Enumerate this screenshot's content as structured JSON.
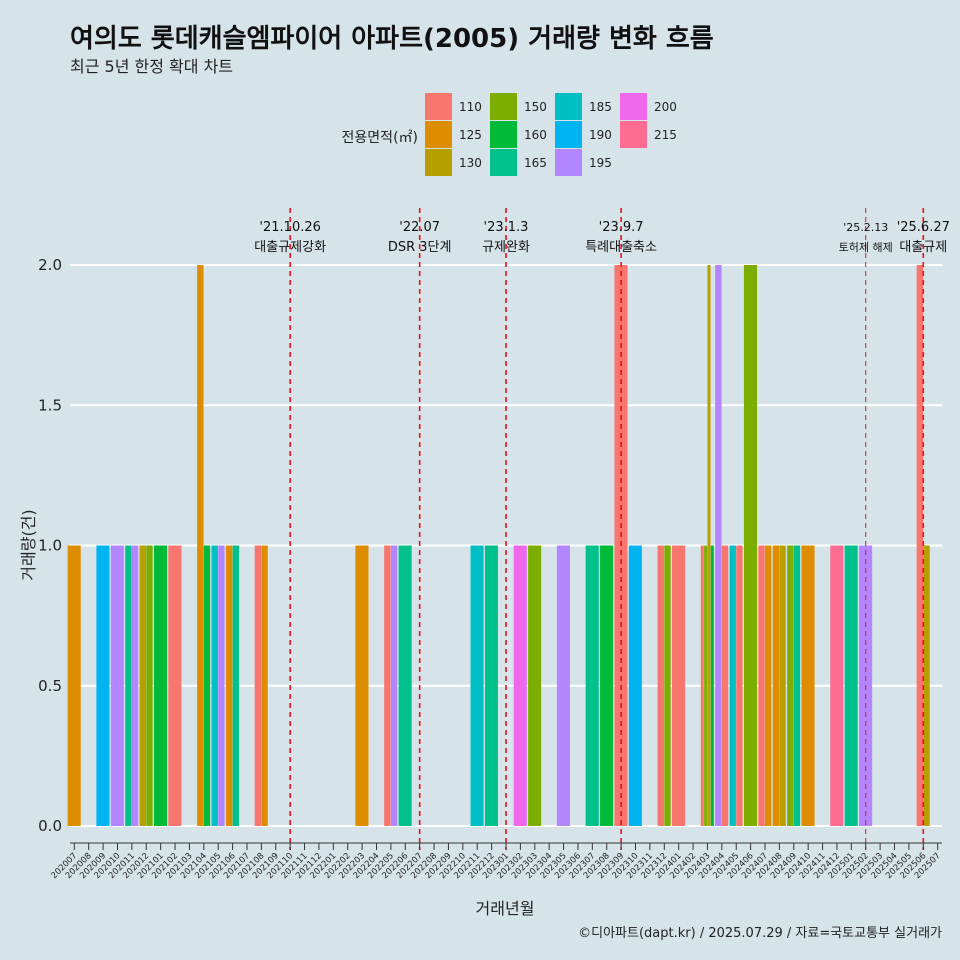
{
  "title": "여의도 롯데캐슬엠파이어 아파트(2005) 거래량 변화 흐름",
  "subtitle": "최근 5년 한정 확대 차트",
  "caption": "©디아파트(dapt.kr) / 2025.07.29 / 자료=국토교통부 실거래가",
  "colors": {
    "110": "#F8766D",
    "125": "#DE8C00",
    "130": "#B79F00",
    "150": "#7CAE00",
    "160": "#00BA38",
    "165": "#00C08B",
    "185": "#00BFC4",
    "190": "#00B4F0",
    "195": "#B385FF",
    "200": "#EF67EB",
    "215": "#FF6C91"
  },
  "chart_data": {
    "type": "bar",
    "xlabel": "거래년월",
    "ylabel": "거래량(건)",
    "ylim": [
      0,
      2
    ],
    "yticks": [
      0.0,
      0.5,
      1.0,
      1.5,
      2.0
    ],
    "ytick_labels": [
      "0.0",
      "0.5",
      "1.0",
      "1.5",
      "2.0"
    ],
    "legend_title": "전용면적(㎡)",
    "legend_position": "top",
    "legend_entries": [
      "110",
      "125",
      "130",
      "150",
      "160",
      "165",
      "185",
      "190",
      "195",
      "200",
      "215"
    ],
    "categories": [
      "202007",
      "202008",
      "202009",
      "202010",
      "202011",
      "202012",
      "202101",
      "202102",
      "202103",
      "202104",
      "202105",
      "202106",
      "202107",
      "202108",
      "202109",
      "202110",
      "202111",
      "202112",
      "202201",
      "202202",
      "202203",
      "202204",
      "202205",
      "202206",
      "202207",
      "202208",
      "202209",
      "202210",
      "202211",
      "202212",
      "202301",
      "202302",
      "202303",
      "202304",
      "202305",
      "202306",
      "202307",
      "202308",
      "202309",
      "202310",
      "202311",
      "202312",
      "202401",
      "202402",
      "202403",
      "202404",
      "202405",
      "202406",
      "202407",
      "202408",
      "202409",
      "202410",
      "202411",
      "202412",
      "202501",
      "202502",
      "202503",
      "202504",
      "202505",
      "202506",
      "202507"
    ],
    "bars": [
      {
        "month": "202007",
        "area": "125",
        "value": 1
      },
      {
        "month": "202009",
        "area": "190",
        "value": 1
      },
      {
        "month": "202010",
        "area": "195",
        "value": 1
      },
      {
        "month": "202011",
        "area": "165",
        "value": 1
      },
      {
        "month": "202011",
        "area": "195",
        "value": 1
      },
      {
        "month": "202012",
        "area": "130",
        "value": 1
      },
      {
        "month": "202012",
        "area": "150",
        "value": 1
      },
      {
        "month": "202101",
        "area": "160",
        "value": 1
      },
      {
        "month": "202102",
        "area": "110",
        "value": 1
      },
      {
        "month": "202104",
        "area": "125",
        "value": 2
      },
      {
        "month": "202104",
        "area": "160",
        "value": 1
      },
      {
        "month": "202105",
        "area": "185",
        "value": 1
      },
      {
        "month": "202105",
        "area": "195",
        "value": 1
      },
      {
        "month": "202106",
        "area": "125",
        "value": 1
      },
      {
        "month": "202106",
        "area": "165",
        "value": 1
      },
      {
        "month": "202108",
        "area": "110",
        "value": 1
      },
      {
        "month": "202108",
        "area": "125",
        "value": 1
      },
      {
        "month": "202203",
        "area": "125",
        "value": 1
      },
      {
        "month": "202205",
        "area": "110",
        "value": 1
      },
      {
        "month": "202205",
        "area": "195",
        "value": 1
      },
      {
        "month": "202206",
        "area": "165",
        "value": 1
      },
      {
        "month": "202211",
        "area": "185",
        "value": 1
      },
      {
        "month": "202212",
        "area": "165",
        "value": 1
      },
      {
        "month": "202302",
        "area": "200",
        "value": 1
      },
      {
        "month": "202303",
        "area": "150",
        "value": 1
      },
      {
        "month": "202305",
        "area": "195",
        "value": 1
      },
      {
        "month": "202307",
        "area": "165",
        "value": 1
      },
      {
        "month": "202308",
        "area": "160",
        "value": 1
      },
      {
        "month": "202309",
        "area": "110",
        "value": 2
      },
      {
        "month": "202310",
        "area": "190",
        "value": 1
      },
      {
        "month": "202312",
        "area": "110",
        "value": 1
      },
      {
        "month": "202312",
        "area": "150",
        "value": 1
      },
      {
        "month": "202401",
        "area": "110",
        "value": 1
      },
      {
        "month": "202403",
        "area": "110",
        "value": 1
      },
      {
        "month": "202403",
        "area": "150",
        "value": 1
      },
      {
        "month": "202403",
        "area": "130",
        "value": 2
      },
      {
        "month": "202403",
        "area": "160",
        "value": 1
      },
      {
        "month": "202404",
        "area": "195",
        "value": 2
      },
      {
        "month": "202404",
        "area": "110",
        "value": 1
      },
      {
        "month": "202405",
        "area": "185",
        "value": 1
      },
      {
        "month": "202405",
        "area": "110",
        "value": 1
      },
      {
        "month": "202406",
        "area": "150",
        "value": 2
      },
      {
        "month": "202407",
        "area": "110",
        "value": 1
      },
      {
        "month": "202407",
        "area": "125",
        "value": 1
      },
      {
        "month": "202408",
        "area": "125",
        "value": 1
      },
      {
        "month": "202408",
        "area": "130",
        "value": 1
      },
      {
        "month": "202409",
        "area": "150",
        "value": 1
      },
      {
        "month": "202409",
        "area": "165",
        "value": 1
      },
      {
        "month": "202410",
        "area": "125",
        "value": 1
      },
      {
        "month": "202412",
        "area": "215",
        "value": 1
      },
      {
        "month": "202501",
        "area": "165",
        "value": 1
      },
      {
        "month": "202502",
        "area": "195",
        "value": 1
      },
      {
        "month": "202506",
        "area": "110",
        "value": 2
      },
      {
        "month": "202506",
        "area": "130",
        "value": 1
      }
    ],
    "events": [
      {
        "month": "202110",
        "date": "'21.10.26",
        "label": "대출규제강화",
        "line": "thick"
      },
      {
        "month": "202207",
        "date": "'22.07",
        "label": "DSR 3단계",
        "line": "thick"
      },
      {
        "month": "202301",
        "date": "'23.1.3",
        "label": "규제완화",
        "line": "thick"
      },
      {
        "month": "202309",
        "date": "'23.9.7",
        "label": "특례대출축소",
        "line": "thick"
      },
      {
        "month": "202502",
        "date": "'25.2.13",
        "label": "토허제 해제",
        "line": "thin"
      },
      {
        "month": "202506",
        "date": "'25.6.27",
        "label": "대출규제",
        "line": "thick"
      }
    ]
  }
}
